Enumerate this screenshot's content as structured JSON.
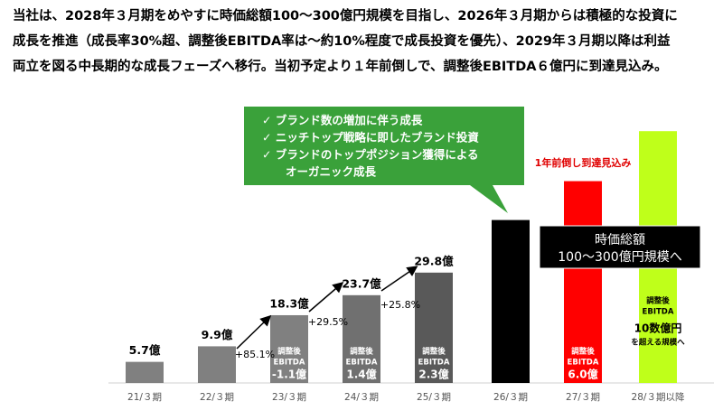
{
  "header": {
    "lines": [
      "当社は、2028年３月期をめやすに時価総額100〜300億円規模を目指し、2026年３月期からは積極的な投資に",
      "成長を推進（成長率30%超、調整後EBITDA率は〜約10%程度で成長投資を優先）、2029年３月期以降は利益",
      "両立を図る中長期的な成長フェーズへ移行。当初予定より１年前倒しで、調整後EBITDA６億円に到達見込み。"
    ]
  },
  "chart_data": {
    "type": "bar",
    "categories": [
      "21/３期",
      "22/３期",
      "23/３期",
      "24/３期",
      "25/３期",
      "26/３期",
      "27/３期",
      "28/３期以降"
    ],
    "values": [
      5.7,
      9.9,
      18.3,
      23.7,
      29.8,
      44,
      54.5,
      68
    ],
    "value_labels": [
      "5.7億",
      "9.9億",
      "18.3億",
      "23.7億",
      "29.8億",
      null,
      null,
      null
    ],
    "colors": [
      "#808080",
      "#808080",
      "#808080",
      "#707070",
      "#595959",
      "#000000",
      "#ff0000",
      "#bfff1a"
    ],
    "growth_labels": [
      "+85.1%",
      "+29.5%",
      "+25.8%"
    ],
    "ebitda_labels": [
      null,
      null,
      [
        "調整後",
        "EBITDA",
        "-1.1億"
      ],
      [
        "調整後",
        "EBITDA",
        "1.4億"
      ],
      [
        "調整後",
        "EBITDA",
        "2.3億"
      ],
      null,
      [
        "調整後",
        "EBITDA",
        "6.0億"
      ],
      [
        "調整後",
        "EBITDA",
        "10数億円",
        "を超える規模へ"
      ]
    ],
    "callout": [
      "✓  ブランド数の増加に伴う成長",
      "✓  ニッチトップ戦略に即したブランド投資",
      "✓  ブランドのトップポジション獲得による",
      "オーガニック成長"
    ],
    "annotation": "1年前倒し到達見込み",
    "market_cap": [
      "時価総額",
      "100〜300億円規模へ"
    ]
  }
}
